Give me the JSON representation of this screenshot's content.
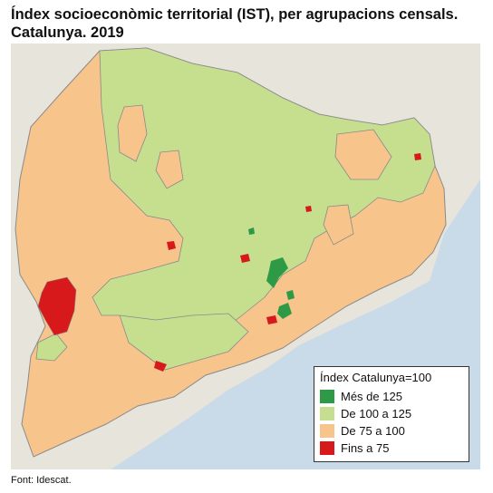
{
  "title": {
    "line1": "Índex socioeconòmic territorial (IST), per agrupacions censals.",
    "line2": "Catalunya. 2019"
  },
  "legend": {
    "title": "Índex Catalunya=100",
    "items": [
      {
        "label": "Més de 125",
        "color": "#2e9a45"
      },
      {
        "label": "De 100 a 125",
        "color": "#c5df8f"
      },
      {
        "label": "De 75 a 100",
        "color": "#f7c48c"
      },
      {
        "label": "Fins a 75",
        "color": "#d7191c"
      }
    ]
  },
  "source": "Font: Idescat.",
  "map_colors": {
    "sea": "#c9dae9",
    "land_outside": "#e7e4dc",
    "border": "#8a8a8a"
  }
}
